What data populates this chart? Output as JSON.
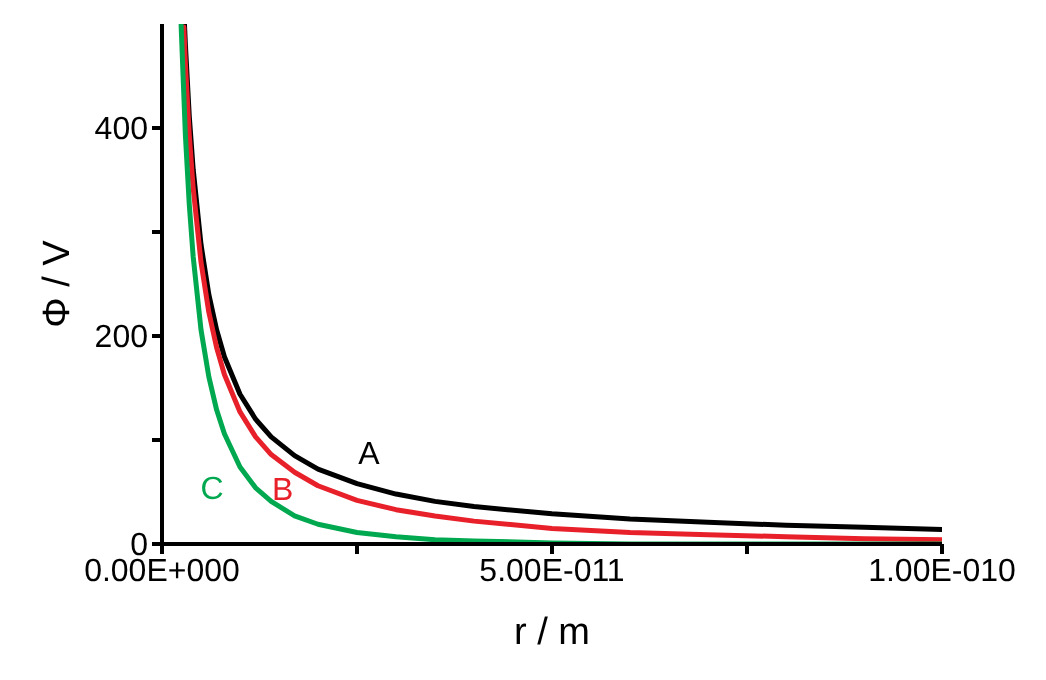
{
  "chart_data": {
    "type": "line",
    "xlabel": "r / m",
    "ylabel": "Φ / V",
    "xlim": [
      0,
      1e-10
    ],
    "xticks": [
      {
        "value": 0,
        "label": "0.00E+000"
      },
      {
        "value": 2.5e-11,
        "label": null
      },
      {
        "value": 5e-11,
        "label": "5.00E-011"
      },
      {
        "value": 7.5e-11,
        "label": null
      },
      {
        "value": 1e-10,
        "label": "1.00E-010"
      }
    ],
    "ylim": [
      0,
      500
    ],
    "yticks": [
      0,
      {
        "value": 100,
        "label": null
      },
      200,
      {
        "value": 300,
        "label": null
      },
      400
    ],
    "grid": false,
    "legend": false,
    "marker": "none",
    "line_style": "solid",
    "series": [
      {
        "name": "A",
        "color": "#000000",
        "x": [
          2.88e-12,
          3e-12,
          3.5e-12,
          4e-12,
          5e-12,
          6e-12,
          7e-12,
          8e-12,
          1e-11,
          1.2e-11,
          1.4e-11,
          1.7e-11,
          2e-11,
          2.5e-11,
          3e-11,
          3.5e-11,
          4e-11,
          5e-11,
          6e-11,
          7e-11,
          8e-11,
          9e-11,
          1e-10
        ],
        "values": [
          500,
          480,
          411,
          360,
          288,
          240,
          206,
          180,
          144,
          120,
          103,
          85,
          72,
          58,
          48,
          41,
          36,
          29,
          24,
          21,
          18,
          16,
          14
        ]
      },
      {
        "name": "B",
        "color": "#e8202a",
        "x": [
          2.8e-12,
          3e-12,
          3.5e-12,
          4e-12,
          5e-12,
          6e-12,
          7e-12,
          8e-12,
          1e-11,
          1.2e-11,
          1.4e-11,
          1.7e-11,
          2e-11,
          2.5e-11,
          3e-11,
          3.5e-11,
          4e-11,
          5e-11,
          6e-11,
          7e-11,
          8e-11,
          9e-11,
          1e-10
        ],
        "values": [
          497,
          462,
          393,
          342,
          271,
          223,
          189,
          163,
          127,
          103,
          86,
          69,
          56,
          42,
          33,
          27,
          22,
          15,
          11,
          9,
          7,
          5,
          4
        ]
      },
      {
        "name": "C",
        "color": "#00a84f",
        "x": [
          2.45e-12,
          3e-12,
          3.5e-12,
          4e-12,
          5e-12,
          6e-12,
          7e-12,
          8e-12,
          1e-11,
          1.2e-11,
          1.4e-11,
          1.7e-11,
          2e-11,
          2.5e-11,
          3e-11,
          3.5e-11,
          4e-11,
          5e-11,
          6e-11,
          7e-11,
          8e-11,
          9e-11,
          1e-10
        ],
        "values": [
          499,
          393,
          326,
          276,
          206,
          161,
          129,
          106,
          74,
          54,
          41,
          27,
          19,
          11,
          7,
          4,
          3,
          1,
          0,
          0,
          0,
          0,
          0
        ]
      }
    ]
  }
}
